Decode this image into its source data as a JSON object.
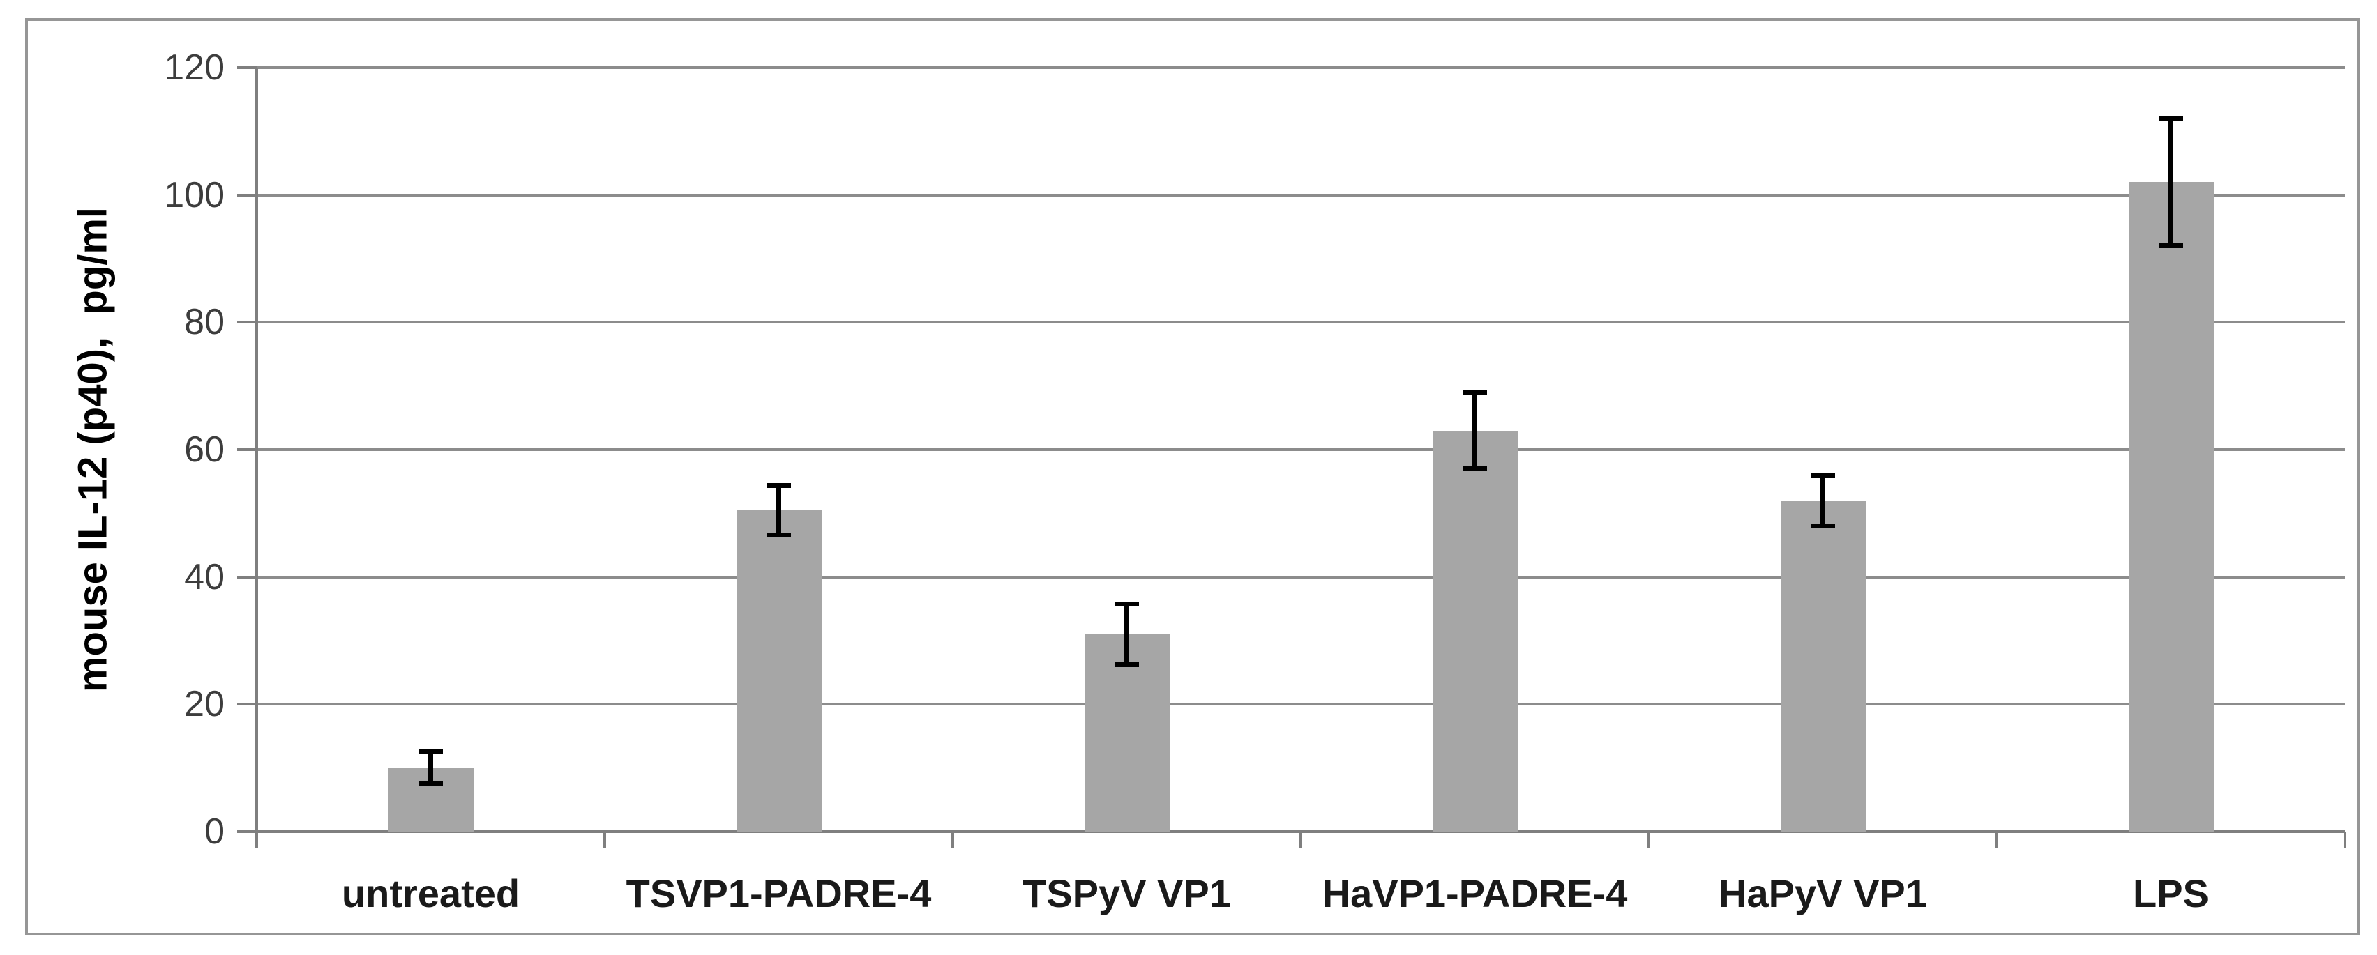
{
  "chart_data": {
    "type": "bar",
    "title": "",
    "categories": [
      "untreated",
      "TSVP1-PADRE-4",
      "TSPyV VP1",
      "HaVP1-PADRE-4",
      "HaPyV VP1",
      "LPS"
    ],
    "values": [
      10,
      50.5,
      31,
      63,
      52,
      102
    ],
    "error_bars": [
      2.5,
      3.9,
      4.8,
      6,
      4,
      10
    ],
    "xlabel": "",
    "ylabel": "mouse IL-12 (p40),  pg/ml",
    "ylim": [
      0,
      120
    ],
    "y_ticks": [
      0,
      20,
      40,
      60,
      80,
      100,
      120
    ],
    "grid": "horizontal gridlines on",
    "legend_position": "none",
    "colors": {
      "bar_fill": "#a6a6a6",
      "error_bar": "#000000",
      "gridline": "#8c8c8c",
      "axis": "#7f7f7f",
      "tick_label": "#3d3d3d",
      "category_label": "#1a1a1a",
      "axis_title": "#000000",
      "figure_border": "#969696",
      "background": "#ffffff"
    }
  }
}
